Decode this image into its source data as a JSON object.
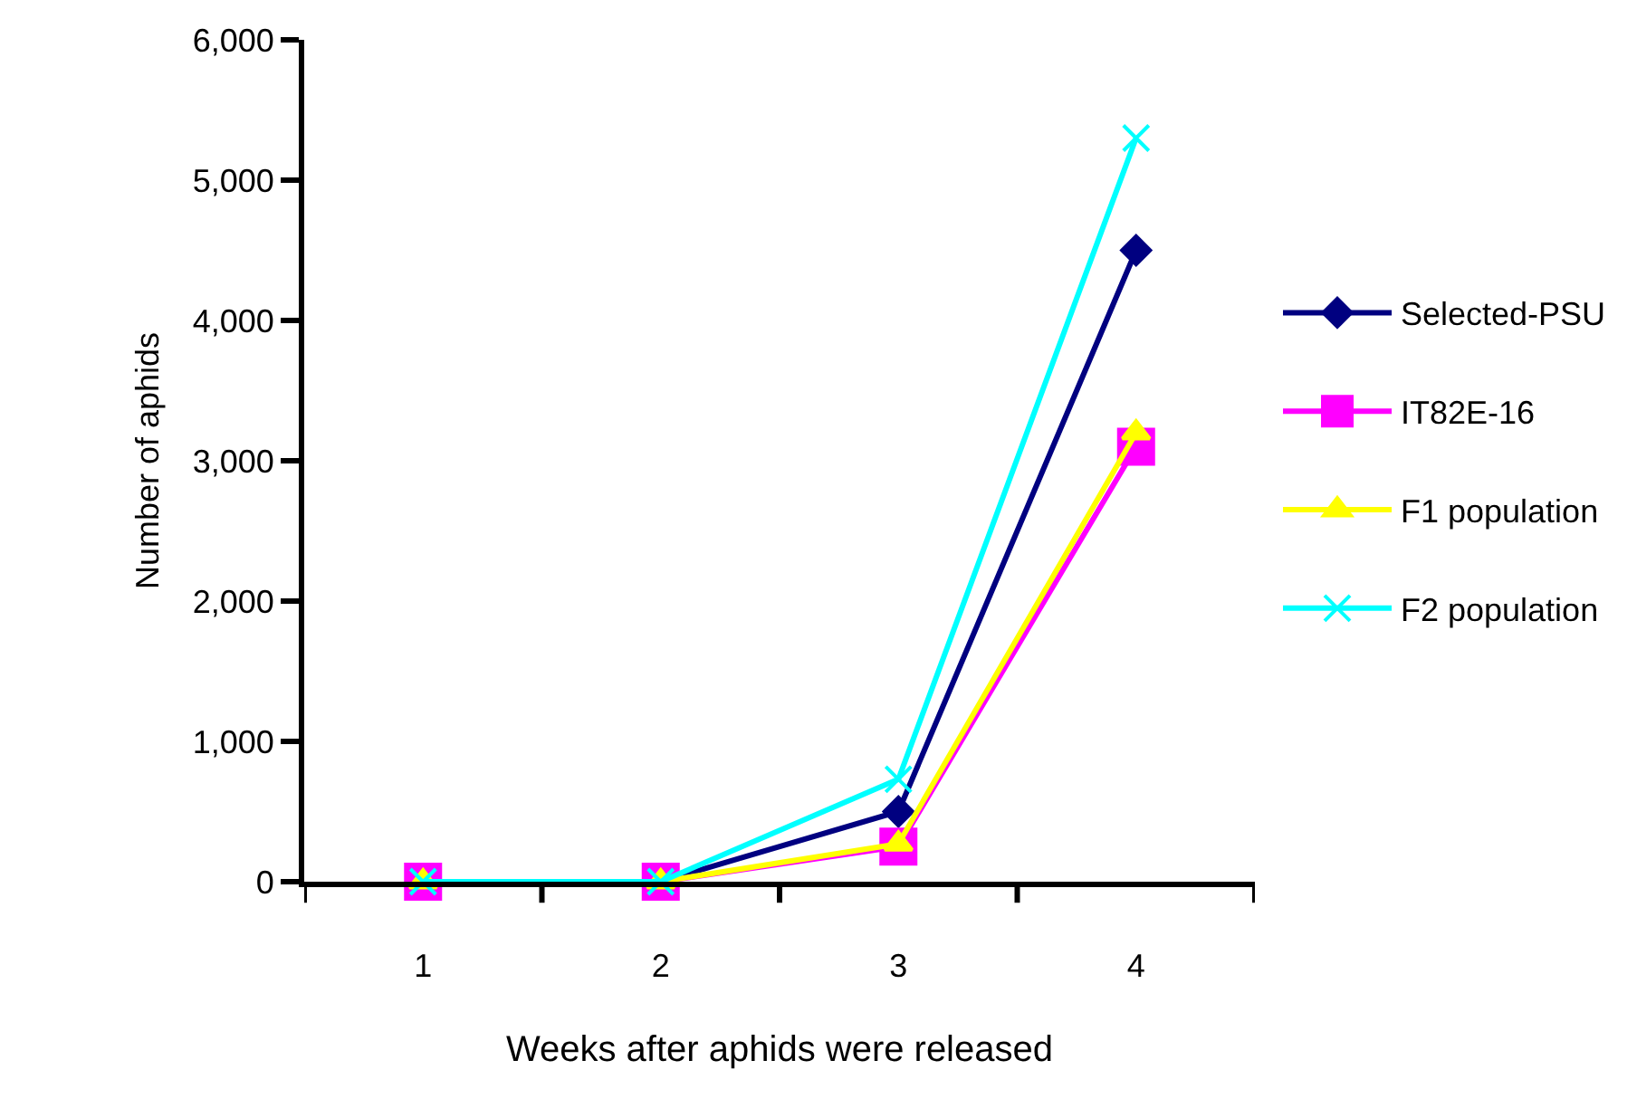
{
  "chart_data": {
    "type": "line",
    "xlabel": "Weeks after aphids were released",
    "ylabel": "Number of aphids",
    "categories": [
      "1",
      "2",
      "3",
      "4"
    ],
    "series": [
      {
        "name": "Selected-PSU",
        "color": "#000080",
        "marker": "diamond",
        "values": [
          0,
          0,
          500,
          4500
        ]
      },
      {
        "name": "IT82E-16",
        "color": "#ff00ff",
        "marker": "square",
        "values": [
          0,
          0,
          250,
          3100
        ]
      },
      {
        "name": "F1 population",
        "color": "#ffff00",
        "marker": "triangle",
        "values": [
          0,
          0,
          270,
          3200
        ]
      },
      {
        "name": "F2 population",
        "color": "#00ffff",
        "marker": "cross",
        "values": [
          0,
          0,
          730,
          5300
        ]
      }
    ],
    "ylim": [
      0,
      6000
    ],
    "yticks": [
      {
        "value": 0,
        "label": "0"
      },
      {
        "value": 1000,
        "label": "1,000"
      },
      {
        "value": 2000,
        "label": "2,000"
      },
      {
        "value": 3000,
        "label": "3,000"
      },
      {
        "value": 4000,
        "label": "4,000"
      },
      {
        "value": 5000,
        "label": "5,000"
      },
      {
        "value": 6000,
        "label": "6,000"
      }
    ],
    "legend": "right",
    "line_style": "solid"
  }
}
